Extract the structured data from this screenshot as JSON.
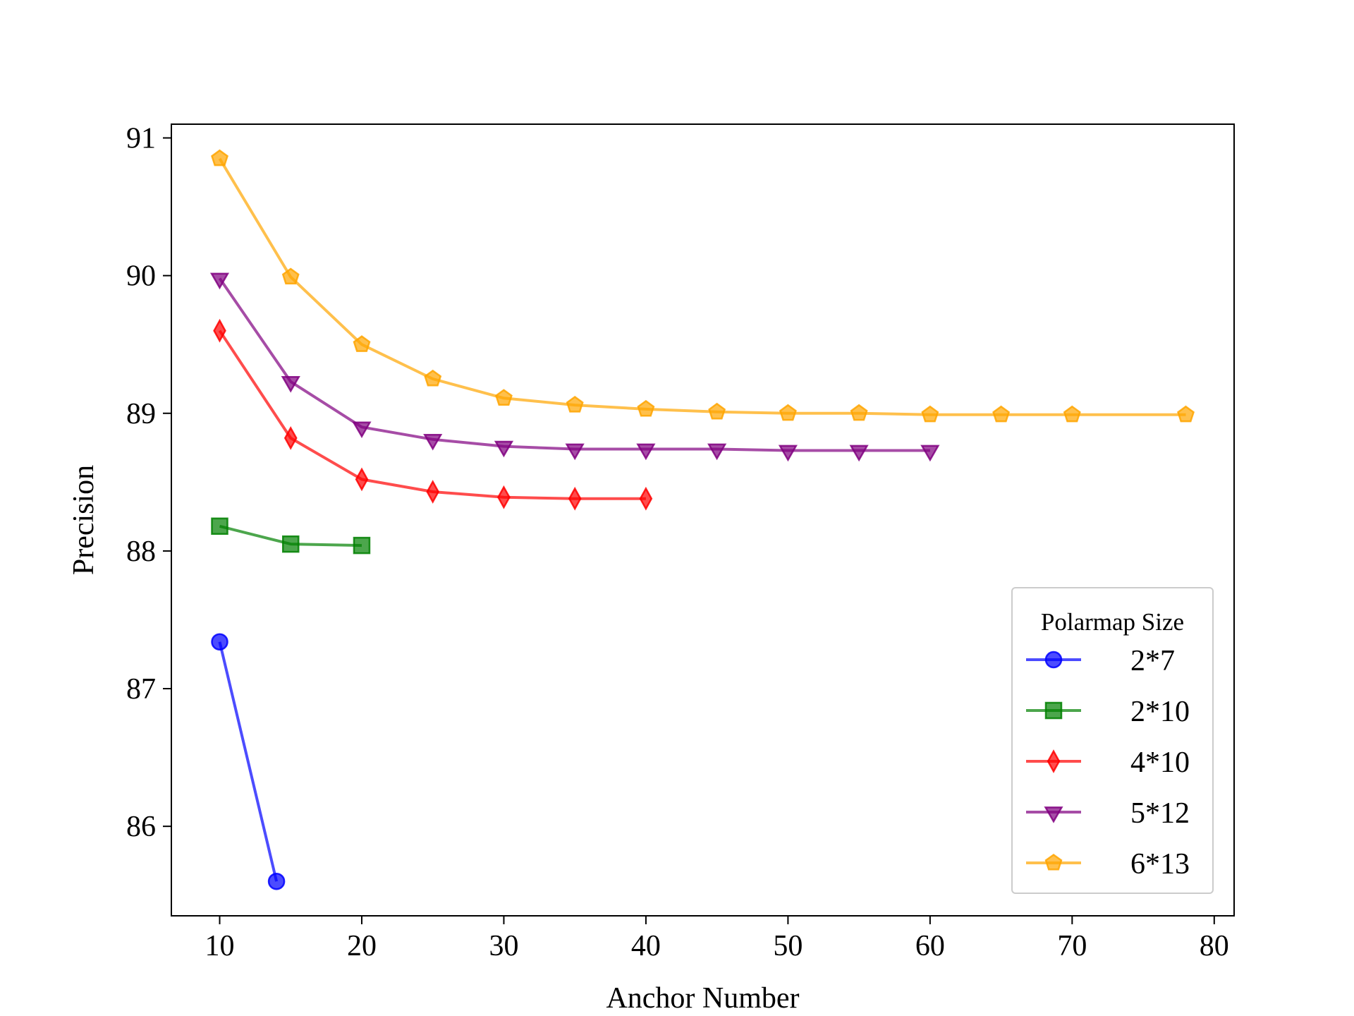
{
  "chart_data": {
    "type": "line",
    "xlabel": "Anchor Number",
    "ylabel": "Precision",
    "xlim": [
      6.6,
      81.4
    ],
    "ylim": [
      85.35,
      91.1
    ],
    "xticks": [
      10,
      20,
      30,
      40,
      50,
      60,
      70,
      80
    ],
    "xtick_labels": [
      "10",
      "20",
      "30",
      "40",
      "50",
      "60",
      "70",
      "80"
    ],
    "yticks": [
      86,
      87,
      88,
      89,
      90,
      91
    ],
    "ytick_labels": [
      "86",
      "87",
      "88",
      "89",
      "90",
      "91"
    ],
    "grid": false,
    "legend": {
      "title": "Polarmap Size",
      "position": "bottom-right"
    },
    "series": [
      {
        "name": "2*7",
        "color": "#0000ff",
        "marker": "circle",
        "x": [
          10,
          14
        ],
        "y": [
          87.34,
          85.6
        ]
      },
      {
        "name": "2*10",
        "color": "#008000",
        "marker": "square",
        "x": [
          10,
          15,
          20
        ],
        "y": [
          88.18,
          88.05,
          88.04
        ]
      },
      {
        "name": "4*10",
        "color": "#ff0000",
        "marker": "diamond",
        "x": [
          10,
          15,
          20,
          25,
          30,
          35,
          40
        ],
        "y": [
          89.6,
          88.82,
          88.52,
          88.43,
          88.39,
          88.38,
          88.38
        ]
      },
      {
        "name": "5*12",
        "color": "#800080",
        "marker": "triangle-down",
        "x": [
          10,
          15,
          20,
          25,
          30,
          35,
          40,
          45,
          50,
          55,
          60
        ],
        "y": [
          89.98,
          89.23,
          88.9,
          88.81,
          88.76,
          88.74,
          88.74,
          88.74,
          88.73,
          88.73,
          88.73
        ]
      },
      {
        "name": "6*13",
        "color": "#ffa500",
        "marker": "pentagon",
        "x": [
          10,
          15,
          20,
          25,
          30,
          35,
          40,
          45,
          50,
          55,
          60,
          65,
          70,
          78
        ],
        "y": [
          90.85,
          89.99,
          89.5,
          89.25,
          89.11,
          89.06,
          89.03,
          89.01,
          89.0,
          89.0,
          88.99,
          88.99,
          88.99,
          88.99
        ]
      }
    ]
  }
}
